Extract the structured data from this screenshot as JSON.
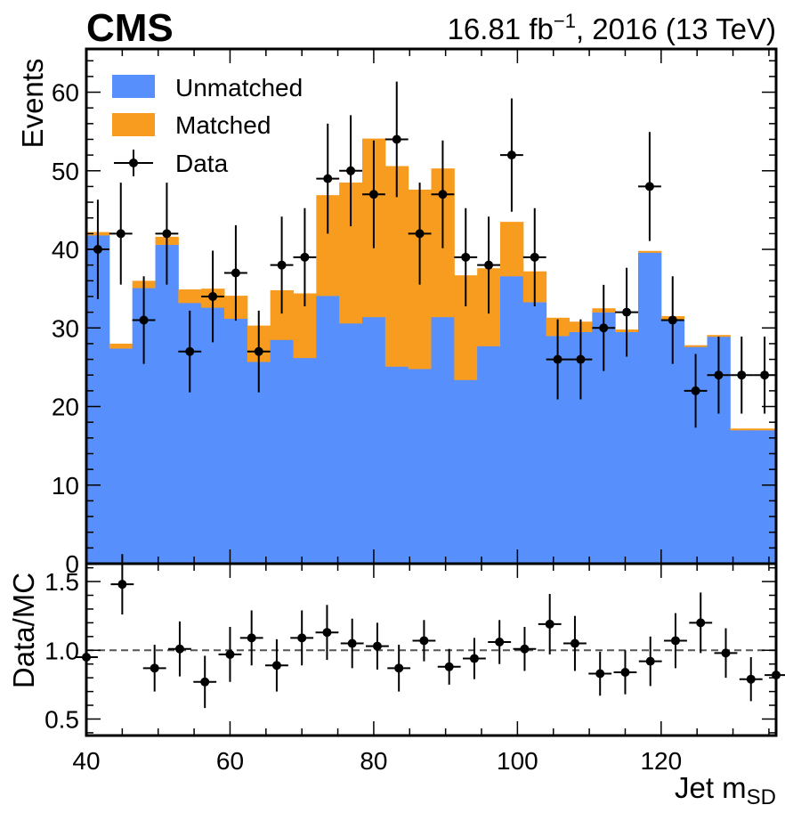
{
  "header": {
    "experiment": "CMS",
    "lumi_value": "16.81 fb",
    "lumi_exp": "−1",
    "lumi_suffix": ", 2016 (13 TeV)"
  },
  "colors": {
    "unmatched": "#5790fc",
    "matched": "#f89c20",
    "data": "#000000"
  },
  "chart_data": [
    {
      "type": "bar",
      "stacked": true,
      "ylabel": "Events",
      "ylim": [
        0,
        65.5
      ],
      "yticks": [
        0,
        10,
        20,
        30,
        40,
        50,
        60
      ],
      "xlim": [
        40,
        136
      ],
      "bin_edges": [
        40,
        43.2,
        46.4,
        49.6,
        52.8,
        56,
        59.2,
        62.4,
        65.6,
        68.8,
        72,
        75.2,
        78.4,
        81.6,
        84.8,
        88,
        91.2,
        94.4,
        97.6,
        100.8,
        104,
        107.2,
        110.4,
        113.6,
        116.8,
        120,
        123.2,
        126.4,
        129.6,
        132.8,
        136
      ],
      "series": [
        {
          "name": "Unmatched",
          "kind": "stack",
          "values": [
            41.8,
            27.4,
            35.1,
            40.6,
            33.2,
            32.6,
            31.2,
            25.7,
            28.5,
            26.2,
            34.1,
            30.6,
            31.4,
            25.1,
            24.8,
            31.4,
            23.4,
            27.7,
            36.6,
            33.3,
            29.0,
            29.5,
            32.0,
            29.5,
            39.6,
            31.1,
            27.6,
            28.9,
            17.0,
            17.0
          ]
        },
        {
          "name": "Matched",
          "kind": "stack",
          "values": [
            0.4,
            0.6,
            0.9,
            1.0,
            1.7,
            2.4,
            2.9,
            4.6,
            6.3,
            8.2,
            12.8,
            17.9,
            22.7,
            25.5,
            22.8,
            18.9,
            13.3,
            9.9,
            6.9,
            3.9,
            2.3,
            1.3,
            0.5,
            0.3,
            0.2,
            0.4,
            0.2,
            0.2,
            0.2,
            0.2
          ]
        },
        {
          "name": "Data",
          "kind": "points",
          "x": [
            41.6,
            44.8,
            48.0,
            51.2,
            54.4,
            57.6,
            60.8,
            64.0,
            67.2,
            70.4,
            73.6,
            76.8,
            80.0,
            83.2,
            86.4,
            89.6,
            92.8,
            96.0,
            99.2,
            102.4,
            105.6,
            108.8,
            112.0,
            115.2,
            118.4,
            121.6,
            124.8,
            128.0,
            131.2,
            134.4
          ],
          "values": [
            40,
            42,
            31,
            42,
            27,
            34,
            37,
            27,
            38,
            39,
            49,
            50,
            47,
            54,
            42,
            47,
            39,
            38,
            52,
            39,
            26,
            26,
            30,
            32,
            48,
            31,
            22,
            24,
            24,
            24
          ]
        }
      ]
    },
    {
      "type": "scatter",
      "ylabel": "Data/MC",
      "xlabel": "Jet m",
      "xlabel_sub": "SD",
      "xlim": [
        40,
        136
      ],
      "ylim": [
        0.38,
        1.63
      ],
      "yticks": [
        0.5,
        1.0,
        1.5
      ],
      "ytick_labels": [
        "0.5",
        "1.0",
        "1.5"
      ],
      "xticks": [
        40,
        60,
        80,
        100,
        120
      ],
      "reference_line": 1.0,
      "x": [
        40.0,
        45.0,
        49.5,
        53.0,
        56.5,
        60.0,
        63.0,
        66.5,
        70.0,
        73.5,
        77.0,
        80.5,
        83.5,
        87.0,
        90.5,
        94.0,
        97.5,
        101.0,
        104.5,
        108.0,
        111.5,
        115.0,
        118.5,
        122.0,
        125.5,
        129.0,
        132.5,
        136.0
      ],
      "values": [
        0.95,
        1.48,
        0.87,
        1.01,
        0.77,
        0.97,
        1.09,
        0.89,
        1.09,
        1.13,
        1.05,
        1.03,
        0.87,
        1.07,
        0.88,
        0.94,
        1.06,
        1.01,
        1.19,
        1.05,
        0.83,
        0.84,
        0.92,
        1.07,
        1.2,
        0.98,
        0.79,
        0.82
      ],
      "errors": [
        0.19,
        0.22,
        0.17,
        0.2,
        0.19,
        0.2,
        0.2,
        0.19,
        0.2,
        0.2,
        0.18,
        0.17,
        0.17,
        0.15,
        0.13,
        0.15,
        0.16,
        0.16,
        0.22,
        0.2,
        0.16,
        0.16,
        0.18,
        0.2,
        0.22,
        0.18,
        0.16,
        0.18
      ]
    }
  ]
}
